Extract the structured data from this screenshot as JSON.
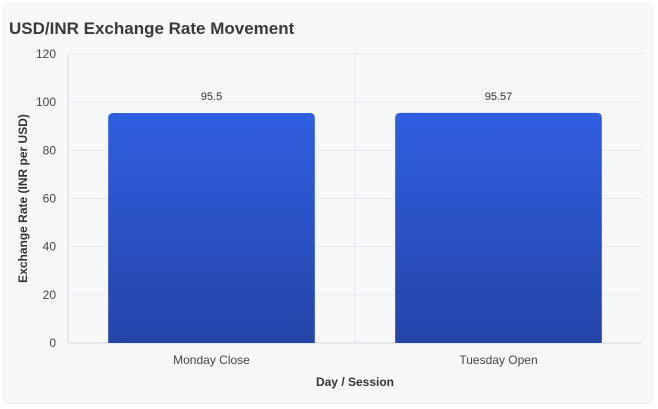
{
  "chart_data": {
    "type": "bar",
    "title": "USD/INR Exchange Rate Movement",
    "xlabel": "Day / Session",
    "ylabel": "Exchange Rate (INR per USD)",
    "categories": [
      "Monday Close",
      "Tuesday Open"
    ],
    "values": [
      95.5,
      95.57
    ],
    "data_labels": [
      "95.5",
      "95.57"
    ],
    "ylim": [
      0,
      120
    ],
    "yticks": [
      0,
      20,
      40,
      60,
      80,
      100,
      120
    ],
    "grid": true,
    "legend": "none",
    "colors": {
      "bar_top": "#2f5fe0",
      "bar_bottom": "#2444a8",
      "grid": "#e6e9ee",
      "axis": "#d6d9de"
    }
  }
}
